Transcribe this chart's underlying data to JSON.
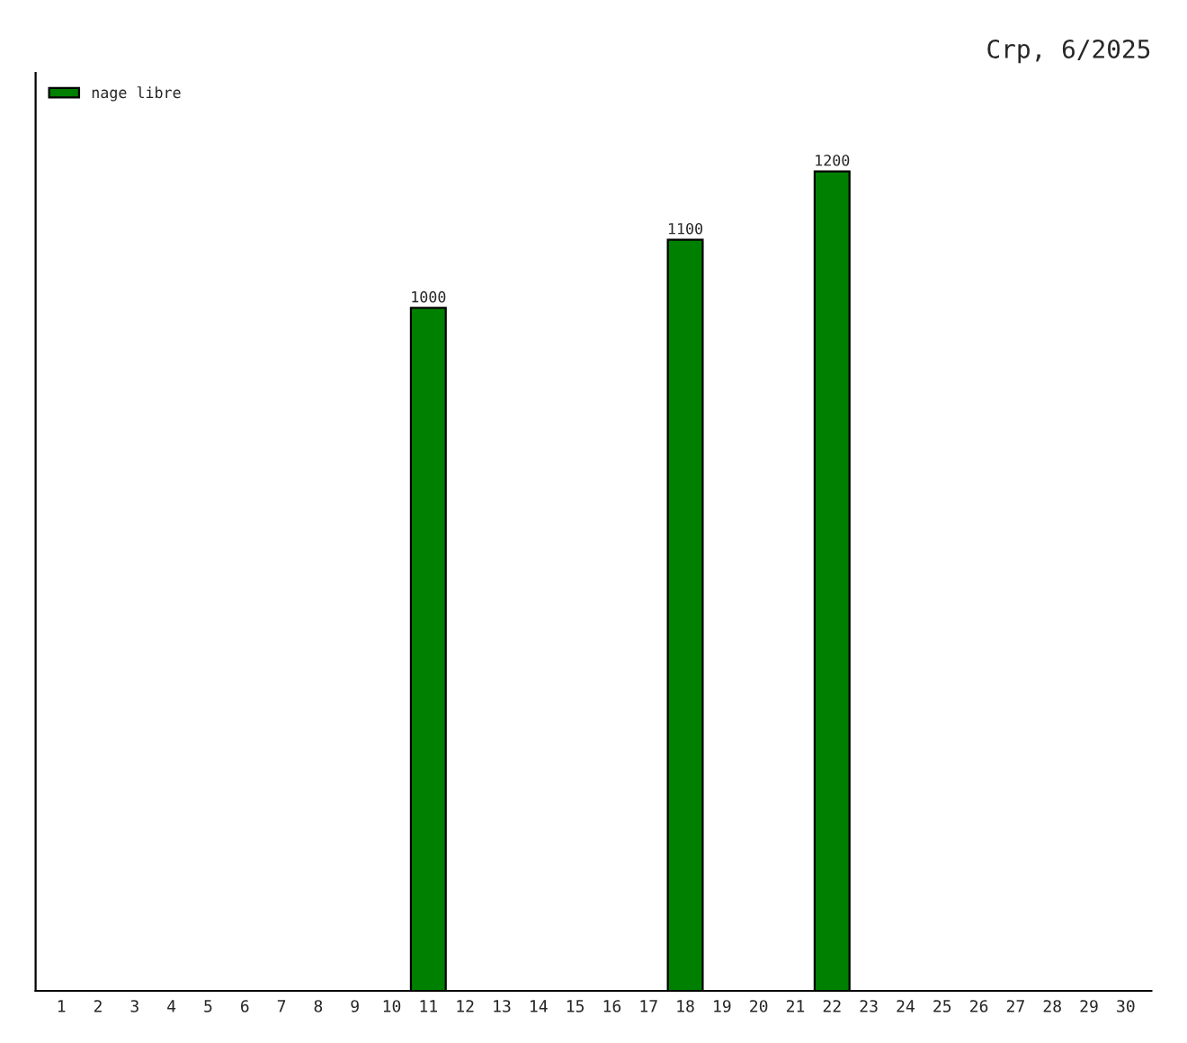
{
  "chart_data": {
    "type": "bar",
    "title": "Crp, 6/2025",
    "categories": [
      "1",
      "2",
      "3",
      "4",
      "5",
      "6",
      "7",
      "8",
      "9",
      "10",
      "11",
      "12",
      "13",
      "14",
      "15",
      "16",
      "17",
      "18",
      "19",
      "20",
      "21",
      "22",
      "23",
      "24",
      "25",
      "26",
      "27",
      "28",
      "29",
      "30"
    ],
    "series": [
      {
        "name": "nage libre",
        "color": "#008000",
        "values": [
          null,
          null,
          null,
          null,
          null,
          null,
          null,
          null,
          null,
          null,
          1000,
          null,
          null,
          null,
          null,
          null,
          null,
          1100,
          null,
          null,
          null,
          1200,
          null,
          null,
          null,
          null,
          null,
          null,
          null,
          null
        ]
      }
    ],
    "data_labels": true,
    "legend": "top left",
    "grid": false,
    "tick_labels": "x"
  }
}
